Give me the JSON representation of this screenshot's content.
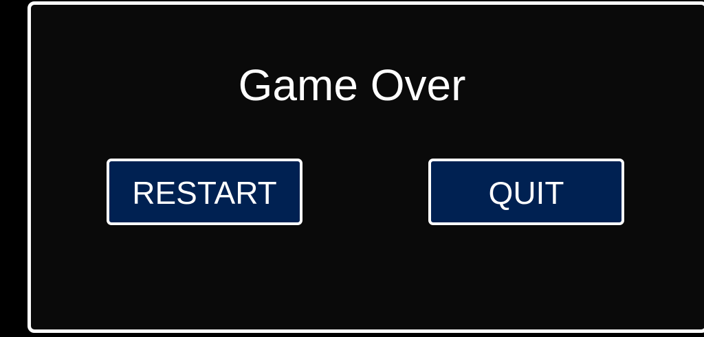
{
  "dialog": {
    "title": "Game Over",
    "restart_label": "RESTART",
    "quit_label": "QUIT"
  },
  "colors": {
    "background": "#000000",
    "panel": "#0a0a0a",
    "panel_border": "#ffffff",
    "button_fill": "#002152",
    "text": "#ffffff"
  }
}
